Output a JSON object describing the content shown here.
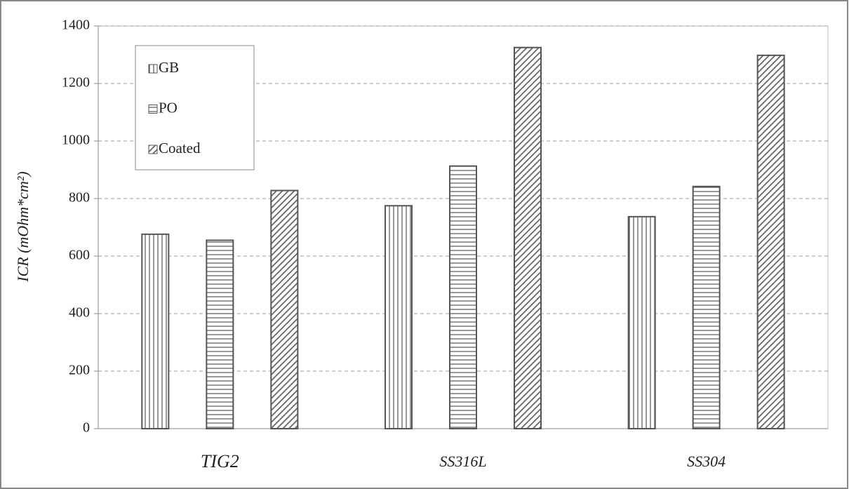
{
  "chart_data": {
    "type": "bar",
    "y_label": "ICR (mOhm*cm²)",
    "categories": [
      "TIG2",
      "SS316L",
      "SS304"
    ],
    "series": [
      {
        "name": "GB",
        "color": "#555555",
        "hatch": "vertical",
        "values": [
          676,
          775,
          737
        ]
      },
      {
        "name": "PO",
        "color": "#555555",
        "hatch": "horizontal",
        "values": [
          655,
          913,
          842
        ]
      },
      {
        "name": "Coated",
        "color": "#555555",
        "hatch": "diagonal",
        "values": [
          828,
          1325,
          1298
        ]
      }
    ],
    "ylim": [
      0,
      1400
    ],
    "yticks": [
      0,
      200,
      400,
      600,
      800,
      1000,
      1200,
      1400
    ],
    "grid": true,
    "legend": "upper left"
  }
}
